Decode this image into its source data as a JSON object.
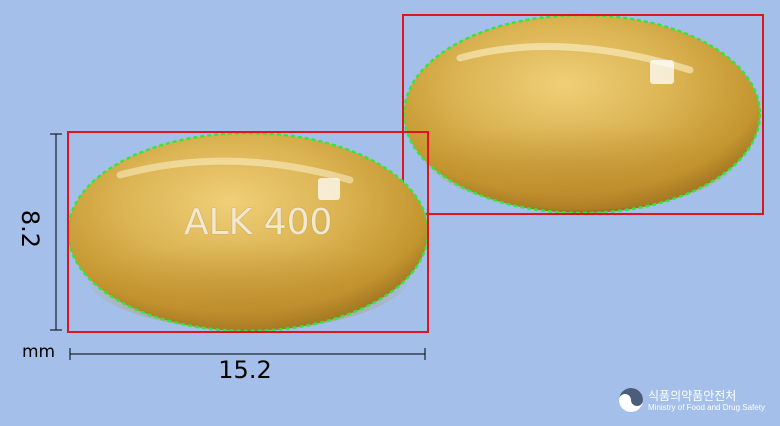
{
  "imprint": "ALK 400",
  "dimensions": {
    "height": "8.2",
    "width": "15.2",
    "unit": "mm"
  },
  "logo": {
    "korean": "식품의약품안전처",
    "english": "Ministry of Food and Drug Safety"
  },
  "colors": {
    "background": "#a4c0ea",
    "pill": "#d6ad4c",
    "bounding_box": "#e0141c",
    "contour": "#35e63a"
  }
}
